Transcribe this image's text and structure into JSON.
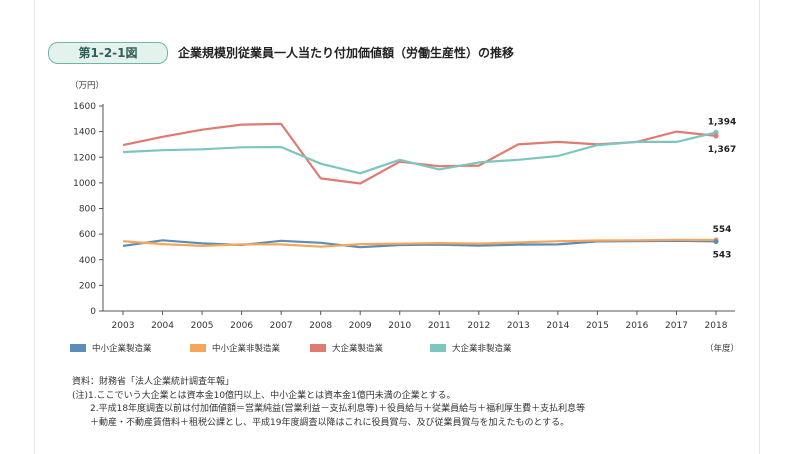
{
  "figure": {
    "label": "第1-2-1図",
    "title": "企業規模別従業員一人当たり付加価値額（労働生産性）の推移"
  },
  "chart_data": {
    "type": "line",
    "y_unit_label": "（万円）",
    "x_unit_label": "（年度）",
    "ylim": [
      0,
      1600
    ],
    "yticks": [
      0,
      200,
      400,
      600,
      800,
      1000,
      1200,
      1400,
      1600
    ],
    "grid": false,
    "legend_position": "bottom",
    "x": [
      "2003",
      "2004",
      "2005",
      "2006",
      "2007",
      "2008",
      "2009",
      "2010",
      "2011",
      "2012",
      "2013",
      "2014",
      "2015",
      "2016",
      "2017",
      "2018"
    ],
    "series": [
      {
        "name": "中小企業製造業",
        "color": "#5b8db8",
        "values": [
          508,
          552,
          528,
          515,
          548,
          532,
          498,
          515,
          518,
          510,
          518,
          520,
          543,
          545,
          548,
          543
        ]
      },
      {
        "name": "中小企業非製造業",
        "color": "#f5a65b",
        "values": [
          545,
          522,
          508,
          520,
          520,
          502,
          522,
          525,
          530,
          526,
          535,
          545,
          550,
          552,
          556,
          554
        ]
      },
      {
        "name": "大企業製造業",
        "color": "#e07b73",
        "values": [
          1295,
          1360,
          1415,
          1455,
          1460,
          1035,
          995,
          1165,
          1130,
          1135,
          1300,
          1320,
          1300,
          1320,
          1400,
          1367
        ]
      },
      {
        "name": "大企業非製造業",
        "color": "#7cc6bf",
        "values": [
          1240,
          1255,
          1262,
          1278,
          1280,
          1150,
          1075,
          1180,
          1105,
          1160,
          1180,
          1210,
          1295,
          1320,
          1320,
          1394
        ]
      }
    ],
    "annotations": [
      {
        "text": "1,394",
        "series": "大企業非製造業",
        "x": "2018",
        "y": 1394,
        "placement": "above"
      },
      {
        "text": "1,367",
        "series": "大企業製造業",
        "x": "2018",
        "y": 1367,
        "placement": "below"
      },
      {
        "text": "554",
        "series": "中小企業非製造業",
        "x": "2018",
        "y": 554,
        "placement": "above"
      },
      {
        "text": "543",
        "series": "中小企業製造業",
        "x": "2018",
        "y": 543,
        "placement": "below"
      }
    ]
  },
  "notes": [
    "資料：財務省「法人企業統計調査年報」",
    "(注)1.ここでいう大企業とは資本金10億円以上、中小企業とは資本金1億円未満の企業とする。",
    "　　2.平成18年度調査以前は付加価値額＝営業純益(営業利益－支払利息等)＋役員給与＋従業員給与＋福利厚生費＋支払利息等",
    "　　＋動産・不動産賃借料＋租税公課とし、平成19年度調査以降はこれに役員賞与、及び従業員賞与を加えたものとする。"
  ]
}
